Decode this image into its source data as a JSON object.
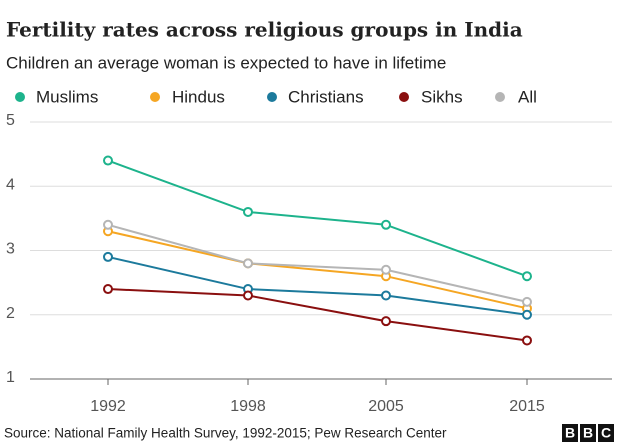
{
  "chart_data": {
    "type": "line",
    "title": "Fertility rates across religious groups in India",
    "subtitle": "Children an average woman is expected to have in lifetime",
    "categories": [
      "1992",
      "1998",
      "2005",
      "2015"
    ],
    "series": [
      {
        "name": "Muslims",
        "color": "#1db38c",
        "values": [
          4.4,
          3.6,
          3.4,
          2.6
        ]
      },
      {
        "name": "Hindus",
        "color": "#f5a623",
        "values": [
          3.3,
          2.8,
          2.6,
          2.1
        ]
      },
      {
        "name": "Christians",
        "color": "#1c7a9c",
        "values": [
          2.9,
          2.4,
          2.3,
          2.0
        ]
      },
      {
        "name": "Sikhs",
        "color": "#8a0f0f",
        "values": [
          2.4,
          2.3,
          1.9,
          1.6
        ]
      },
      {
        "name": "All",
        "color": "#b5b5b5",
        "values": [
          3.4,
          2.8,
          2.7,
          2.2
        ]
      }
    ],
    "ylim": [
      1,
      5
    ],
    "yticks": [
      1,
      2,
      3,
      4,
      5
    ],
    "grid": true,
    "source": "Source: National Family Health Survey, 1992-2015; Pew Research Center",
    "logo": [
      "B",
      "B",
      "C"
    ]
  }
}
